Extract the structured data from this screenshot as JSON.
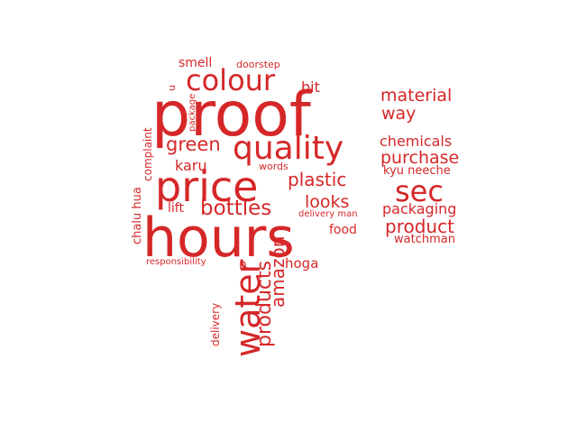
{
  "color": "#d62728",
  "words": [
    {
      "text": "proof",
      "orientation": "horizontal"
    },
    {
      "text": "hours",
      "orientation": "horizontal"
    },
    {
      "text": "price",
      "orientation": "horizontal"
    },
    {
      "text": "quality",
      "orientation": "horizontal"
    },
    {
      "text": "colour",
      "orientation": "horizontal"
    },
    {
      "text": "water",
      "orientation": "vertical"
    },
    {
      "text": "sec",
      "orientation": "horizontal"
    },
    {
      "text": "bottles",
      "orientation": "horizontal"
    },
    {
      "text": "products",
      "orientation": "vertical"
    },
    {
      "text": "amazon",
      "orientation": "vertical"
    },
    {
      "text": "green",
      "orientation": "horizontal"
    },
    {
      "text": "plastic",
      "orientation": "horizontal"
    },
    {
      "text": "looks",
      "orientation": "horizontal"
    },
    {
      "text": "product",
      "orientation": "horizontal"
    },
    {
      "text": "purchase",
      "orientation": "horizontal"
    },
    {
      "text": "material",
      "orientation": "horizontal"
    },
    {
      "text": "way",
      "orientation": "horizontal"
    },
    {
      "text": "chemicals",
      "orientation": "horizontal"
    },
    {
      "text": "packaging",
      "orientation": "horizontal"
    },
    {
      "text": "smell",
      "orientation": "horizontal"
    },
    {
      "text": "bit",
      "orientation": "horizontal"
    },
    {
      "text": "karu",
      "orientation": "horizontal"
    },
    {
      "text": "hoga",
      "orientation": "horizontal"
    },
    {
      "text": "food",
      "orientation": "horizontal"
    },
    {
      "text": "n",
      "orientation": "horizontal"
    },
    {
      "text": "lift",
      "orientation": "horizontal"
    },
    {
      "text": "kyu neeche",
      "orientation": "horizontal"
    },
    {
      "text": "watchman",
      "orientation": "horizontal"
    },
    {
      "text": "complaint",
      "orientation": "vertical"
    },
    {
      "text": "chalu hua",
      "orientation": "vertical"
    },
    {
      "text": "delivery",
      "orientation": "vertical"
    },
    {
      "text": "u",
      "orientation": "vertical"
    },
    {
      "text": "doorstep",
      "orientation": "horizontal"
    },
    {
      "text": "package",
      "orientation": "vertical"
    },
    {
      "text": "words",
      "orientation": "horizontal"
    },
    {
      "text": "delivery man",
      "orientation": "horizontal"
    },
    {
      "text": "responsibility",
      "orientation": "horizontal"
    }
  ]
}
